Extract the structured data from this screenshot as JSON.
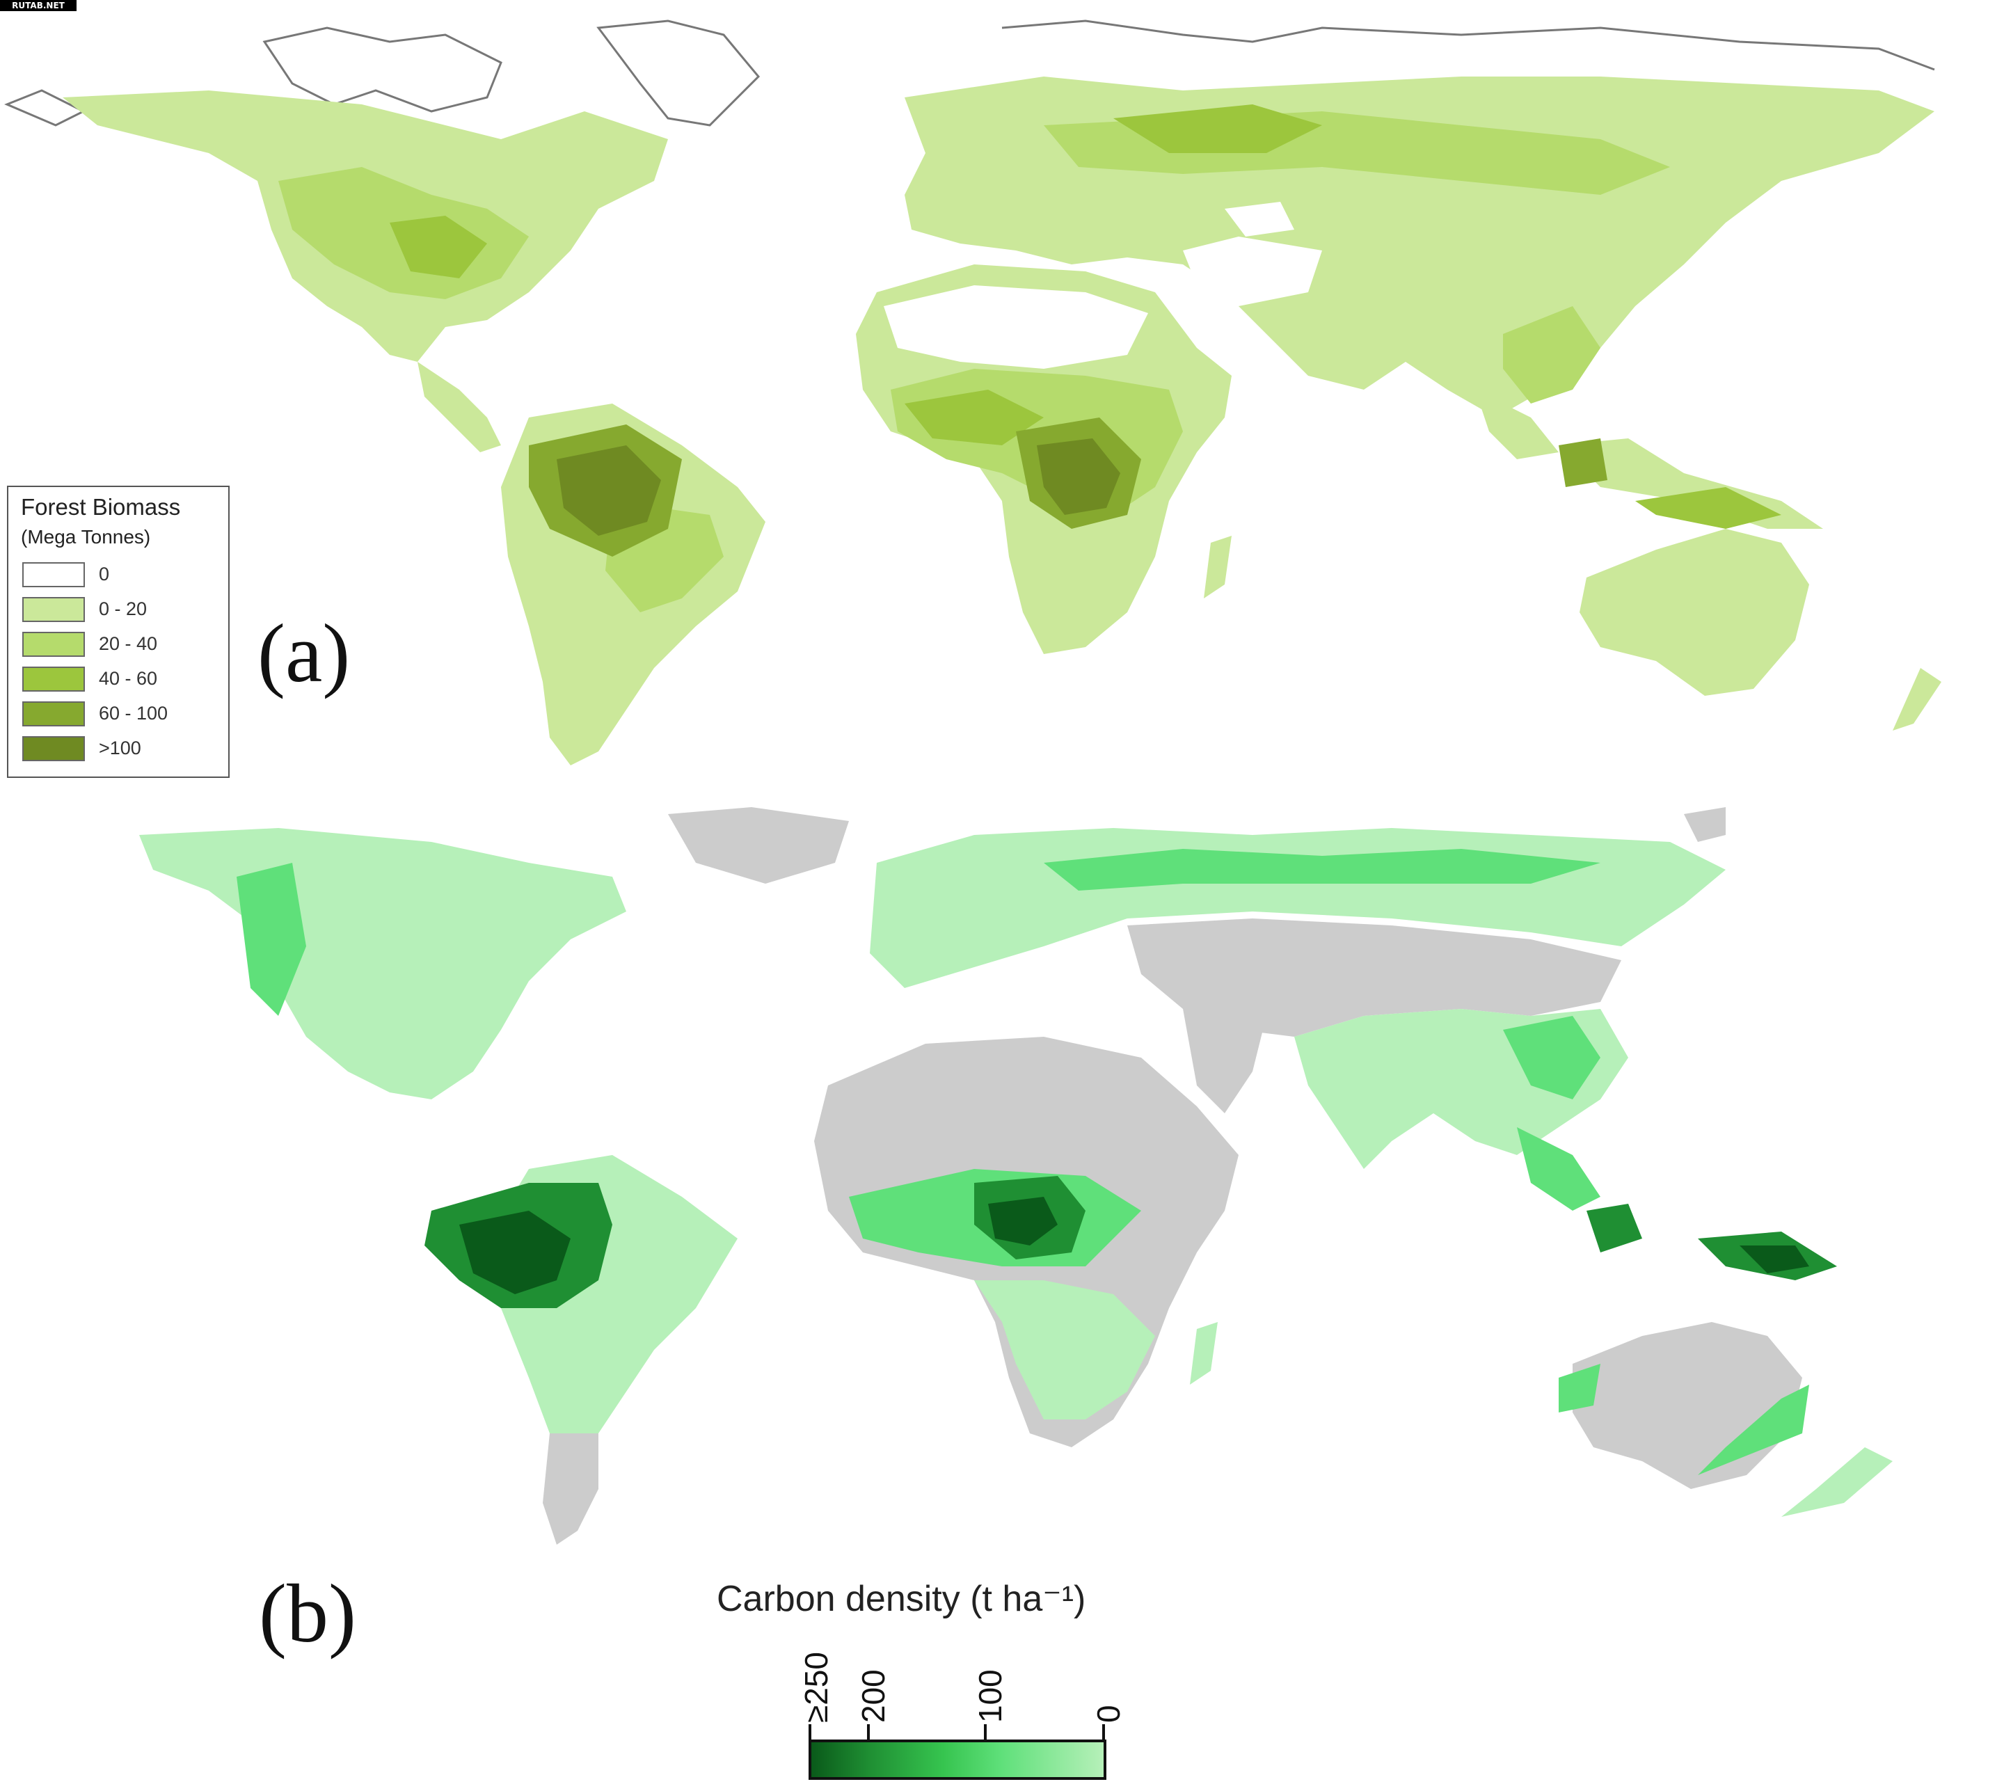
{
  "watermark": "RUTAB.NET",
  "panel_a": {
    "label": "(a)",
    "legend": {
      "title": "Forest Biomass",
      "subtitle": "(Mega Tonnes)",
      "classes": [
        {
          "label": "0",
          "color": "#ffffff"
        },
        {
          "label": "0 - 20",
          "color": "#cbe89a"
        },
        {
          "label": "20 - 40",
          "color": "#b5db6c"
        },
        {
          "label": "40 - 60",
          "color": "#9cc63d"
        },
        {
          "label": "60 - 100",
          "color": "#86a92f"
        },
        {
          "label": ">100",
          "color": "#6f8a22"
        }
      ]
    }
  },
  "panel_b": {
    "label": "(b)",
    "colorbar": {
      "title": "Carbon density (t ha⁻¹)",
      "ticks": [
        "≥250",
        "200",
        "100",
        "0"
      ],
      "tick_values": [
        250,
        200,
        100,
        0
      ],
      "colors": {
        "high": "#0a5a1a",
        "mid": "#36c44f",
        "low": "#b6f0b9",
        "nodata": "#cccccc"
      }
    }
  }
}
